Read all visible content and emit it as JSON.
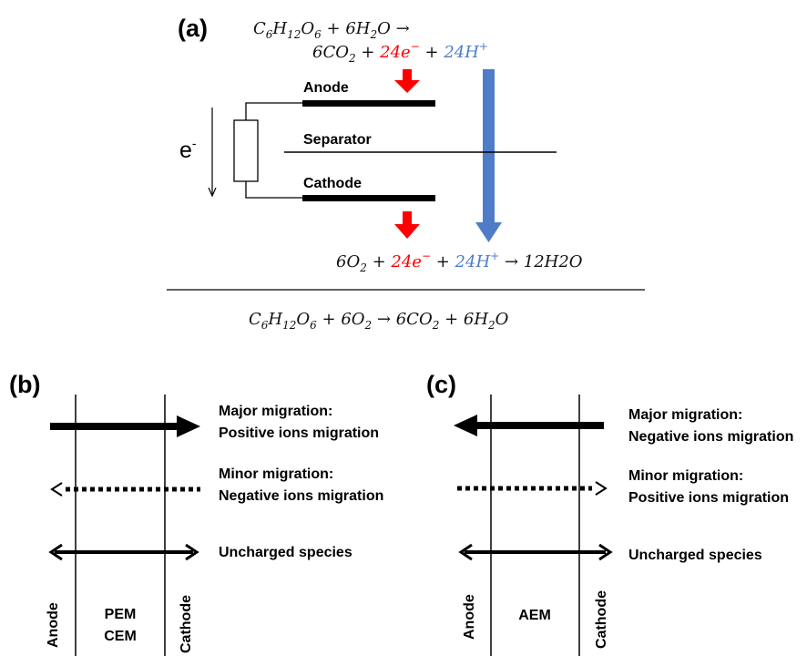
{
  "panel_a": {
    "label": "(a)",
    "eq_top_line1": [
      "C",
      "6",
      "H",
      "12",
      "O",
      "6",
      " + 6",
      "H",
      "2",
      "O  →"
    ],
    "eq_top_line2": {
      "prefix": "6CO",
      "prefix_sub": "2",
      "plus1": " + ",
      "electrons": "24e",
      "electrons_sup": "−",
      "plus2": " + ",
      "protons": "24H",
      "protons_sup": "+"
    },
    "anode_label": "Anode",
    "separator_label": "Separator",
    "cathode_label": "Cathode",
    "electron_label": "e",
    "electron_sup": "-",
    "eq_cathode": {
      "prefix": "6O",
      "prefix_sub": "2",
      "plus1": " + ",
      "electrons": "24e",
      "electrons_sup": "−",
      "plus2": " + ",
      "protons": "24H",
      "protons_sup": "+",
      "suffix": "  → 12H2O"
    },
    "eq_overall": {
      "c": "C",
      "c_sub": "6",
      "h": "H",
      "h_sub": "12",
      "o": "O",
      "o_sub": "6",
      "plus1": " + 6O",
      "o2_sub": "2",
      "arrow": "  →  6CO",
      "co2_sub": "2",
      "plus2": " + 6H",
      "h2_sub": "2",
      "end": "O"
    },
    "colors": {
      "electrons": "#ff0000",
      "protons": "#4f7cc9",
      "red_arrow": "#ff0000",
      "blue_arrow": "#4f7cc9"
    }
  },
  "panel_b": {
    "label": "(b)",
    "major_title": "Major migration:",
    "major_desc": "Positive ions migration",
    "minor_title": "Minor migration:",
    "minor_desc": "Negative ions migration",
    "uncharged": "Uncharged species",
    "anode": "Anode",
    "cathode": "Cathode",
    "membrane_line1": "PEM",
    "membrane_line2": "CEM",
    "major_direction": "right",
    "minor_direction": "left"
  },
  "panel_c": {
    "label": "(c)",
    "major_title": "Major migration:",
    "major_desc": "Negative ions migration",
    "minor_title": "Minor migration:",
    "minor_desc": "Positive ions migration",
    "uncharged": "Uncharged species",
    "anode": "Anode",
    "cathode": "Cathode",
    "membrane_line1": "AEM",
    "major_direction": "left",
    "minor_direction": "right"
  }
}
